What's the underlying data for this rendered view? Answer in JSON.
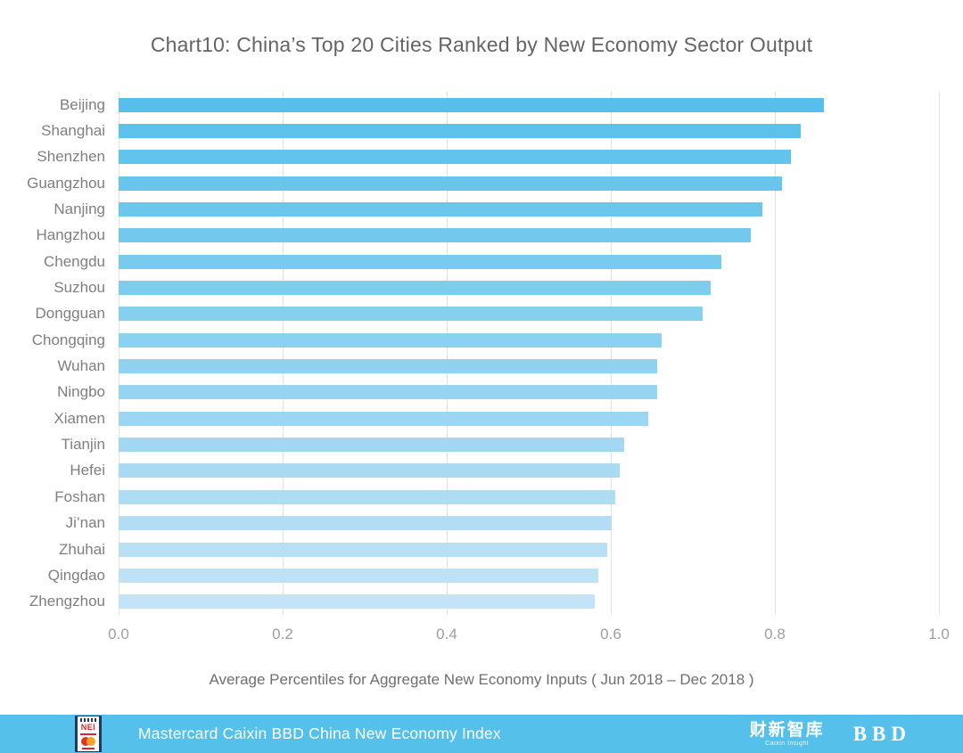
{
  "title": "Chart10:  China’s Top 20 Cities Ranked by New Economy Sector Output",
  "chart_data": {
    "type": "bar",
    "orientation": "horizontal",
    "categories": [
      "Beijing",
      "Shanghai",
      "Shenzhen",
      "Guangzhou",
      "Nanjing",
      "Hangzhou",
      "Chengdu",
      "Suzhou",
      "Dongguan",
      "Chongqing",
      "Wuhan",
      "Ningbo",
      "Xiamen",
      "Tianjin",
      "Hefei",
      "Foshan",
      "Ji’nan",
      "Zhuhai",
      "Qingdao",
      "Zhengzhou"
    ],
    "values": [
      0.86,
      0.832,
      0.82,
      0.809,
      0.785,
      0.771,
      0.735,
      0.722,
      0.712,
      0.662,
      0.657,
      0.656,
      0.646,
      0.616,
      0.611,
      0.605,
      0.601,
      0.596,
      0.585,
      0.58
    ],
    "xlabel": "Average Percentiles for Aggregate New Economy Inputs ( Jun 2018 – Dec 2018 )",
    "xlim": [
      0.0,
      1.0
    ],
    "xticks": [
      "0.0",
      "0.2",
      "0.4",
      "0.6",
      "0.8",
      "1.0"
    ],
    "grid": true,
    "legend": "none",
    "bar_color_top": "#56c0ea",
    "bar_color_bottom": "#c5e3f6",
    "gridline_color": "#e3e3e3"
  },
  "footer": {
    "title": "Mastercard Caixin BBD China New Economy Index",
    "background": "#55c1ea",
    "nei_logo_text": "NEI",
    "caixin_logo_text": "财新智库",
    "caixin_logo_subtext": "Caixin Insight",
    "bbd_logo_text": "BBD"
  }
}
